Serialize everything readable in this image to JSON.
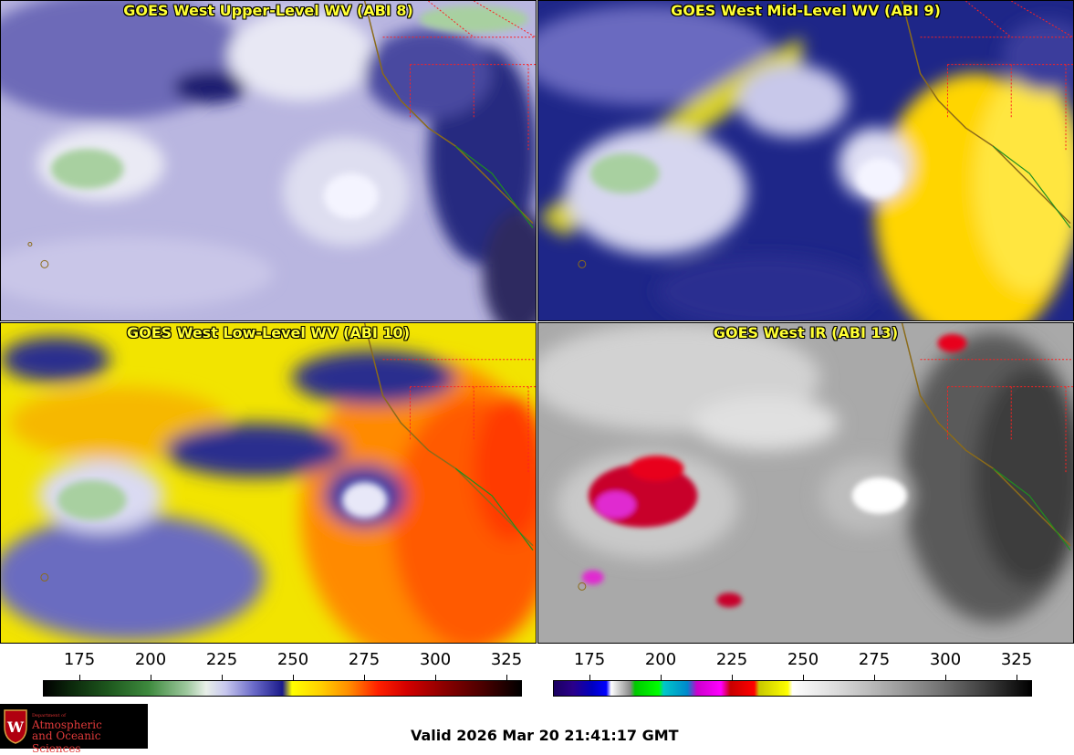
{
  "panels": [
    {
      "title": "GOES West Upper-Level WV (ABI 8)"
    },
    {
      "title": "GOES West Mid-Level WV (ABI 9)"
    },
    {
      "title": "GOES West Low-Level WV (ABI 10)"
    },
    {
      "title": "GOES West IR (ABI 13)"
    }
  ],
  "colorbars": [
    {
      "name": "wv-colorbar",
      "ticks": [
        "175",
        "200",
        "225",
        "250",
        "275",
        "300",
        "325"
      ]
    },
    {
      "name": "ir-colorbar",
      "ticks": [
        "175",
        "200",
        "225",
        "250",
        "275",
        "300",
        "325"
      ]
    }
  ],
  "logo": {
    "line1": "Department of",
    "line2": "Atmospheric",
    "line3": "and Oceanic Sciences"
  },
  "valid_time": "Valid 2026 Mar 20 21:41:17 GMT",
  "colors": {
    "title_text": "#ffff33",
    "state_borders": "#ff2020",
    "coastline": "#8b6b1a"
  }
}
